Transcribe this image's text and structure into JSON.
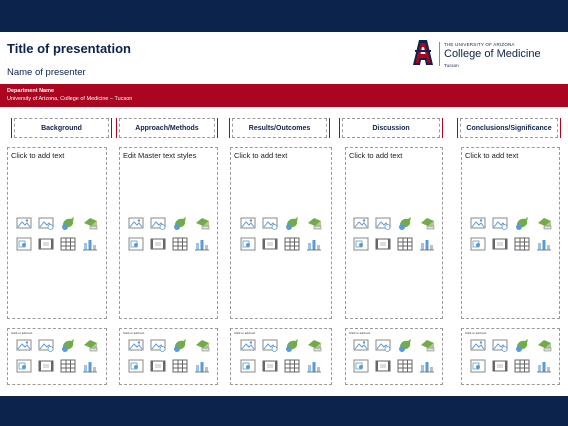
{
  "slide": {
    "title": "Title of presentation",
    "presenter": "Name of presenter",
    "logo": {
      "university_line": "THE UNIVERSITY OF ARIZONA",
      "college": "College of Medicine",
      "campus": "Tucson"
    },
    "department": {
      "name": "Department Name",
      "university": "University of Arizona, College of Medicine – Tucson"
    },
    "columns": [
      {
        "header": "Background",
        "main_text": "Click to add text",
        "small_text": "Click to add text"
      },
      {
        "header": "Approach/Methods",
        "main_text": "Edit Master text styles",
        "small_text": "Click to add text"
      },
      {
        "header": "Results/Outcomes",
        "main_text": "Click to add text",
        "small_text": "Click to add text"
      },
      {
        "header": "Discussion",
        "main_text": "Click to add text",
        "small_text": "Click to add text"
      },
      {
        "header": "Conclusions/Significance",
        "main_text": "Click to add text",
        "small_text": "Click to add text"
      }
    ],
    "placeholder_icons": [
      "picture-icon",
      "online-picture-icon",
      "icons-icon",
      "3d-model-icon",
      "screenshot-icon",
      "video-icon",
      "table-icon",
      "chart-icon"
    ]
  },
  "colors": {
    "navy": "#0c234b",
    "red": "#ab0520",
    "white": "#ffffff"
  }
}
